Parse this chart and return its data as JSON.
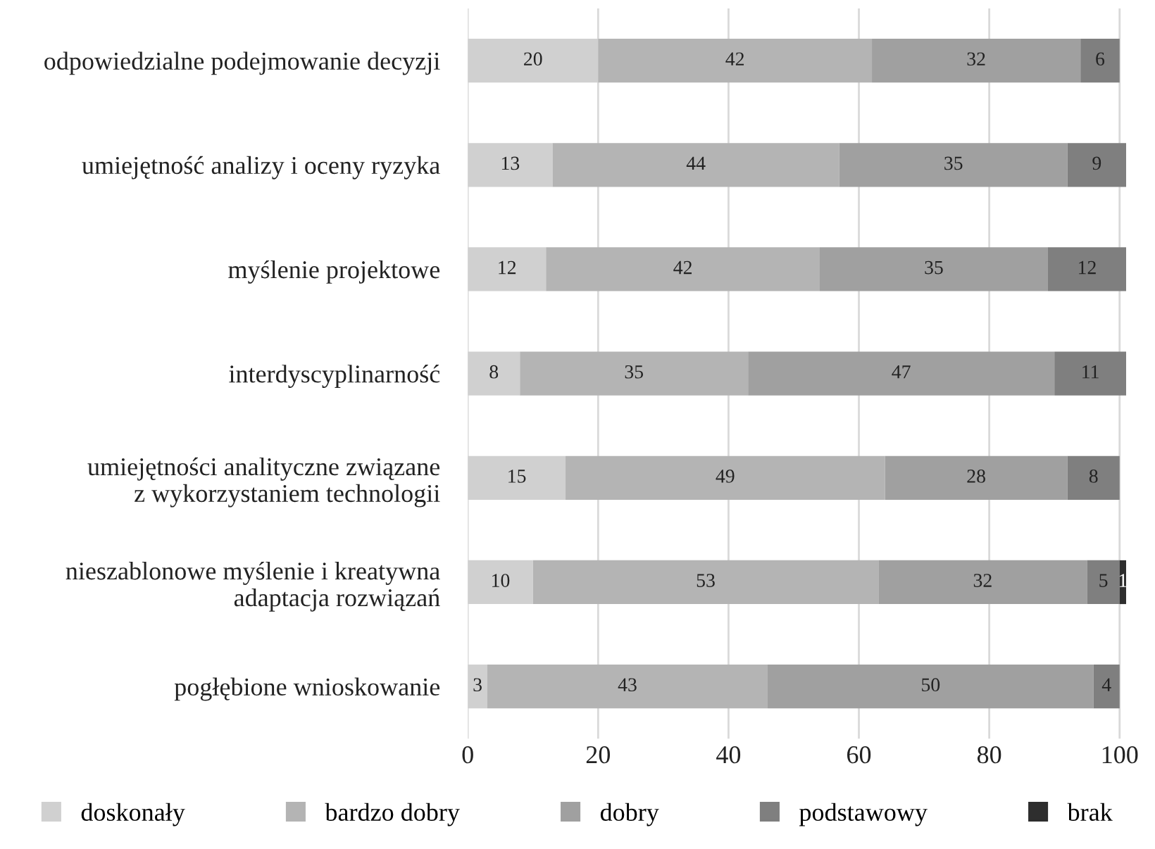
{
  "chart_data": {
    "type": "bar",
    "orientation": "horizontal",
    "stacked": true,
    "data_labels": true,
    "categories": [
      "odpowiedzialne podejmowanie decyzji",
      "umiejętność analizy i oceny ryzyka",
      "myślenie projektowe",
      "interdyscyplinarność",
      "umiejętności analityczne związane\nz wykorzystaniem technologii",
      "nieszablonowe myślenie i kreatywna\nadaptacja rozwiązań",
      "pogłębione wnioskowanie"
    ],
    "series": [
      {
        "name": "doskonały",
        "color": "#d0d0d0",
        "values": [
          20,
          13,
          12,
          8,
          15,
          10,
          3
        ]
      },
      {
        "name": "bardzo dobry",
        "color": "#b4b4b4",
        "values": [
          42,
          44,
          42,
          35,
          49,
          53,
          43
        ]
      },
      {
        "name": "dobry",
        "color": "#a0a0a0",
        "values": [
          32,
          35,
          35,
          47,
          28,
          32,
          50
        ]
      },
      {
        "name": "podstawowy",
        "color": "#7f7f7f",
        "values": [
          6,
          9,
          12,
          11,
          8,
          5,
          4
        ]
      },
      {
        "name": "brak",
        "color": "#2e2e2e",
        "values": [
          null,
          null,
          null,
          null,
          null,
          1,
          null
        ]
      }
    ],
    "xlim": [
      0,
      101
    ],
    "xticks": [
      0,
      20,
      40,
      60,
      80,
      100
    ],
    "grid": "x",
    "legend": "bottom"
  }
}
